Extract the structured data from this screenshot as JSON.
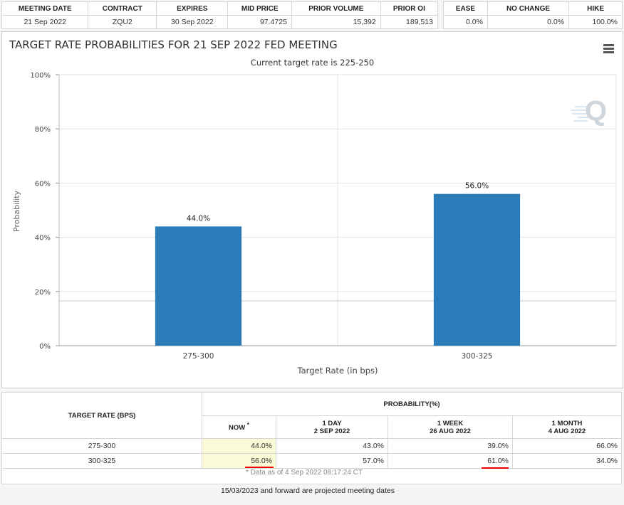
{
  "header": {
    "left_columns": [
      "MEETING DATE",
      "CONTRACT",
      "EXPIRES",
      "MID PRICE",
      "PRIOR VOLUME",
      "PRIOR OI"
    ],
    "left_values": [
      "21 Sep 2022",
      "ZQU2",
      "30 Sep 2022",
      "97.4725",
      "15,392",
      "189,513"
    ],
    "right_columns": [
      "EASE",
      "NO CHANGE",
      "HIKE"
    ],
    "right_values": [
      "0.0%",
      "0.0%",
      "100.0%"
    ]
  },
  "chart_data": {
    "type": "bar",
    "title": "TARGET RATE PROBABILITIES FOR 21 SEP 2022 FED MEETING",
    "subtitle": "Current target rate is 225-250",
    "categories": [
      "275-300",
      "300-325"
    ],
    "values": [
      44.0,
      56.0
    ],
    "data_labels": [
      "44.0%",
      "56.0%"
    ],
    "xlabel": "Target Rate (in bps)",
    "ylabel": "Probability",
    "ylim": [
      0,
      100
    ],
    "yticks": [
      0,
      20,
      40,
      60,
      80,
      100
    ],
    "ytick_labels": [
      "0%",
      "20%",
      "40%",
      "60%",
      "80%",
      "100%"
    ],
    "bar_color": "#2b7bb9",
    "grid": true,
    "legend": "none"
  },
  "probability_table": {
    "target_rate_header": "TARGET RATE (BPS)",
    "probability_header": "PROBABILITY(%)",
    "now_label": "NOW",
    "now_mark": "*",
    "columns": [
      {
        "line1": "1 DAY",
        "line2": "2 SEP 2022"
      },
      {
        "line1": "1 WEEK",
        "line2": "26 AUG 2022"
      },
      {
        "line1": "1 MONTH",
        "line2": "4 AUG 2022"
      }
    ],
    "rows": [
      {
        "rate": "275-300",
        "now": "44.0%",
        "day": "43.0%",
        "week": "39.0%",
        "month": "66.0%"
      },
      {
        "rate": "300-325",
        "now": "56.0%",
        "day": "57.0%",
        "week": "61.0%",
        "month": "34.0%"
      }
    ],
    "footnote": "* Data as of 4 Sep 2022 08:17:24 CT"
  },
  "footer_note": "15/03/2023 and forward are projected meeting dates",
  "colors": {
    "accent": "#2b7bb9",
    "highlight": "#fafad6",
    "underline": "#e00000"
  },
  "icons": {
    "menu": "hamburger-menu-icon",
    "watermark": "q-logo-watermark"
  }
}
